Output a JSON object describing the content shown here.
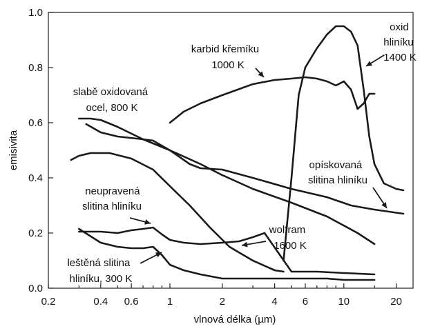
{
  "chart_data": {
    "type": "line",
    "xscale": "log",
    "xlabel": "vlnová délka (µm)",
    "ylabel": "emisivita",
    "xlim": [
      0.2,
      25
    ],
    "ylim": [
      0,
      1.0
    ],
    "grid": false,
    "xticks": [
      {
        "value": 0.2,
        "label": "0.2"
      },
      {
        "value": 0.4,
        "label": "0.4"
      },
      {
        "value": 0.6,
        "label": "0.6"
      },
      {
        "value": 1,
        "label": "1"
      },
      {
        "value": 2,
        "label": "2"
      },
      {
        "value": 4,
        "label": "4"
      },
      {
        "value": 6,
        "label": "6"
      },
      {
        "value": 10,
        "label": "10"
      },
      {
        "value": 20,
        "label": "20"
      }
    ],
    "xminor": [
      0.3,
      0.5,
      0.7,
      0.8,
      0.9,
      3,
      5,
      7,
      8,
      9,
      15
    ],
    "yticks": [
      {
        "value": 0.0,
        "label": "0.0"
      },
      {
        "value": 0.2,
        "label": "0.2"
      },
      {
        "value": 0.4,
        "label": "0.4"
      },
      {
        "value": 0.6,
        "label": "0.6"
      },
      {
        "value": 0.8,
        "label": "0.8"
      },
      {
        "value": 1.0,
        "label": "1.0"
      }
    ],
    "series": [
      {
        "name": "karbid křemíku 1000 K",
        "x": [
          1.0,
          1.2,
          1.5,
          2.0,
          3.0,
          4.0,
          5.0,
          6.0,
          7.0,
          8.0,
          9.0,
          10.0,
          11.0,
          12.0,
          13.0,
          14.0,
          15.0
        ],
        "y": [
          0.6,
          0.64,
          0.67,
          0.7,
          0.74,
          0.755,
          0.76,
          0.765,
          0.76,
          0.75,
          0.735,
          0.75,
          0.72,
          0.65,
          0.67,
          0.705,
          0.705
        ]
      },
      {
        "name": "oxid hliníku 1400 K",
        "x": [
          4.5,
          5.0,
          5.5,
          6.0,
          7.0,
          8.0,
          9.0,
          10.0,
          11.0,
          12.0,
          13.0,
          14.0,
          15.0,
          17.0,
          20.0,
          22.0
        ],
        "y": [
          0.1,
          0.4,
          0.7,
          0.8,
          0.87,
          0.92,
          0.95,
          0.95,
          0.93,
          0.88,
          0.72,
          0.55,
          0.45,
          0.38,
          0.36,
          0.355
        ]
      },
      {
        "name": "slabě oxidovaná ocel, 800 K",
        "x": [
          0.3,
          0.35,
          0.4,
          0.5,
          0.7,
          1.0,
          1.5,
          2.0,
          3.0,
          5.0,
          8.0,
          12.0,
          15.0
        ],
        "y": [
          0.615,
          0.615,
          0.61,
          0.585,
          0.54,
          0.5,
          0.45,
          0.41,
          0.36,
          0.31,
          0.26,
          0.2,
          0.16
        ]
      },
      {
        "name": "opískovaná slitina hliníku",
        "x": [
          0.33,
          0.4,
          0.5,
          0.7,
          0.8,
          1.0,
          1.3,
          1.5,
          2.0,
          3.0,
          5.0,
          8.0,
          11.0,
          15.0,
          22.0
        ],
        "y": [
          0.595,
          0.565,
          0.55,
          0.54,
          0.535,
          0.5,
          0.45,
          0.435,
          0.43,
          0.4,
          0.36,
          0.33,
          0.3,
          0.285,
          0.27
        ]
      },
      {
        "name": "wolfram 1600 K",
        "x": [
          0.27,
          0.3,
          0.35,
          0.45,
          0.6,
          0.8,
          1.0,
          1.3,
          1.7,
          2.2,
          3.0,
          4.0,
          4.5
        ],
        "y": [
          0.465,
          0.48,
          0.49,
          0.49,
          0.47,
          0.43,
          0.37,
          0.3,
          0.22,
          0.15,
          0.1,
          0.065,
          0.06
        ]
      },
      {
        "name": "neupravená slitina hliníku",
        "x": [
          0.3,
          0.4,
          0.5,
          0.6,
          0.7,
          0.8,
          0.9,
          1.0,
          1.2,
          1.5,
          2.0,
          2.5,
          3.0,
          3.5,
          5.0,
          7.0,
          10.0,
          15.0
        ],
        "y": [
          0.205,
          0.205,
          0.2,
          0.21,
          0.215,
          0.22,
          0.195,
          0.175,
          0.165,
          0.16,
          0.165,
          0.17,
          0.185,
          0.2,
          0.06,
          0.06,
          0.055,
          0.05
        ]
      },
      {
        "name": "leštěná slitina hliníku, 300 K",
        "x": [
          0.3,
          0.4,
          0.5,
          0.6,
          0.7,
          0.8,
          0.9,
          1.0,
          1.2,
          1.5,
          2.0,
          3.0,
          5.0,
          8.0,
          10.0,
          15.0
        ],
        "y": [
          0.215,
          0.165,
          0.15,
          0.145,
          0.145,
          0.15,
          0.12,
          0.085,
          0.065,
          0.05,
          0.035,
          0.035,
          0.035,
          0.035,
          0.03,
          0.03
        ]
      }
    ],
    "annotations": [
      {
        "lines": [
          "karbid křemíku",
          "1000 K"
        ]
      },
      {
        "lines": [
          "oxid",
          "hliníku",
          "1400 K"
        ]
      },
      {
        "lines": [
          "slabě oxidovaná",
          "ocel, 800 K"
        ]
      },
      {
        "lines": [
          "opískovaná",
          "slitina hliníku"
        ]
      },
      {
        "lines": [
          "neupravená",
          "slitina hliníku"
        ]
      },
      {
        "lines": [
          "wolfram",
          "1600 K"
        ]
      },
      {
        "lines": [
          "leštěná slitina",
          "hliníku, 300 K"
        ]
      }
    ]
  }
}
